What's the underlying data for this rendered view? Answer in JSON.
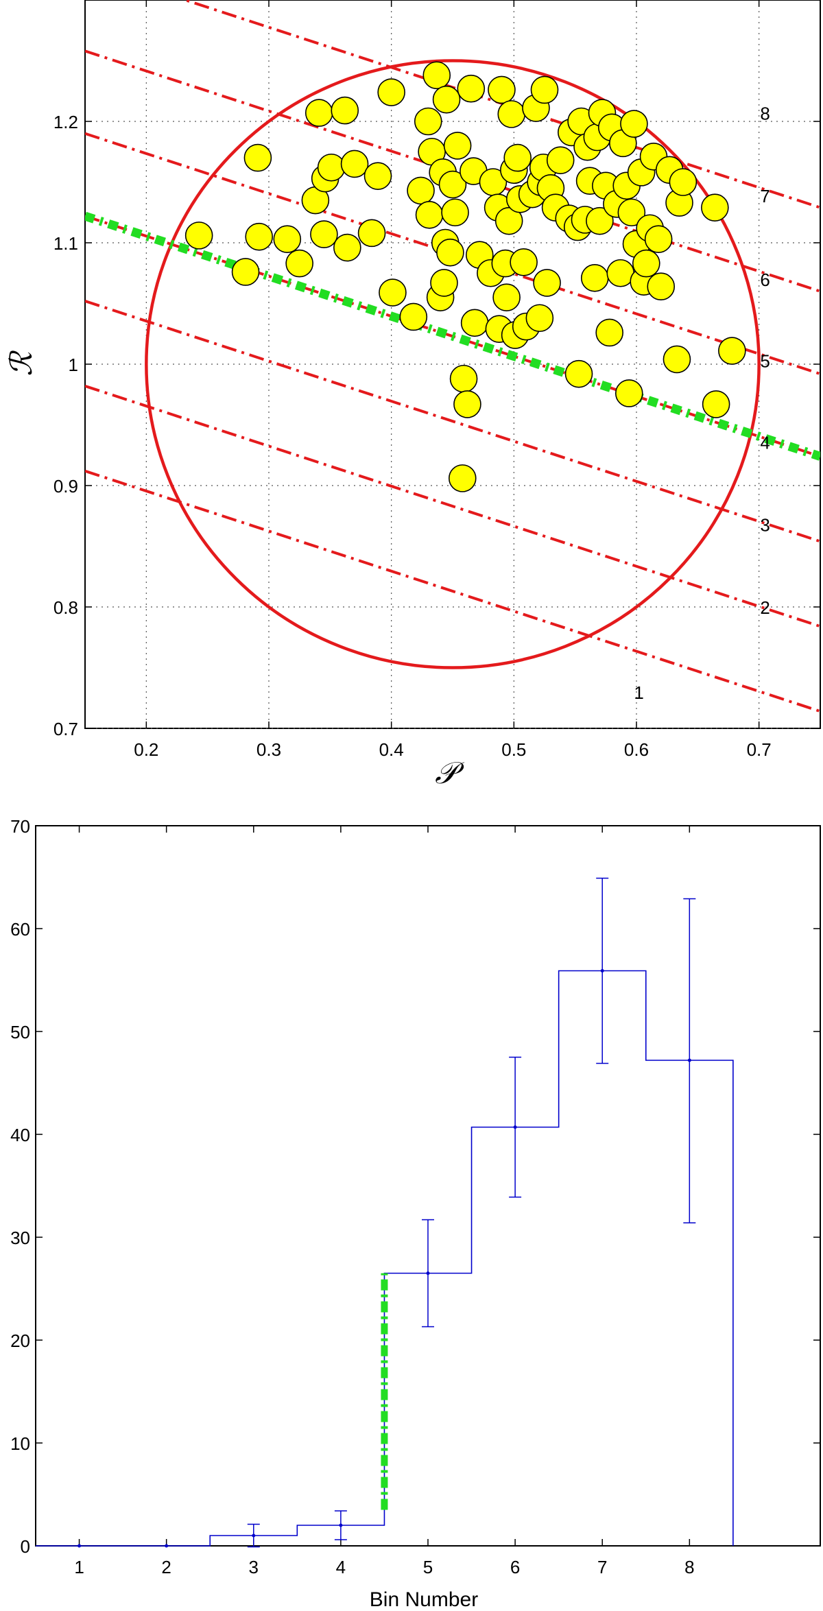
{
  "chart_data": [
    {
      "type": "scatter",
      "xlabel": "𝒫",
      "ylabel": "ℛ",
      "xlim": [
        0.15,
        0.75
      ],
      "ylim": [
        0.7,
        1.3
      ],
      "xticks": [
        "0.2",
        "0.3",
        "0.4",
        "0.5",
        "0.6",
        "0.7"
      ],
      "yticks": [
        "0.7",
        "0.8",
        "0.9",
        "1",
        "1.1",
        "1.2"
      ],
      "grid": true,
      "circle": {
        "center": [
          0.45,
          1.0
        ],
        "radius_x": 0.25,
        "radius_y": 0.25,
        "color": "#e41a1c"
      },
      "bin_lines": {
        "slope": -0.33,
        "intercepts_at_x015": [
          0.912,
          0.982,
          1.052,
          1.122,
          1.19,
          1.258,
          1.327
        ],
        "color": "#e41a1c"
      },
      "threshold_line": {
        "intercept_at_x015": 1.122,
        "slope": -0.33,
        "color": "#22dd22"
      },
      "bin_labels": [
        "1",
        "2",
        "3",
        "4",
        "5",
        "6",
        "7",
        "8"
      ],
      "points": [
        [
          0.243,
          1.106
        ],
        [
          0.281,
          1.076
        ],
        [
          0.291,
          1.17
        ],
        [
          0.292,
          1.105
        ],
        [
          0.315,
          1.103
        ],
        [
          0.325,
          1.083
        ],
        [
          0.338,
          1.135
        ],
        [
          0.341,
          1.207
        ],
        [
          0.345,
          1.107
        ],
        [
          0.346,
          1.153
        ],
        [
          0.351,
          1.162
        ],
        [
          0.362,
          1.209
        ],
        [
          0.364,
          1.096
        ],
        [
          0.37,
          1.165
        ],
        [
          0.384,
          1.108
        ],
        [
          0.389,
          1.155
        ],
        [
          0.4,
          1.224
        ],
        [
          0.401,
          1.059
        ],
        [
          0.418,
          1.039
        ],
        [
          0.424,
          1.143
        ],
        [
          0.43,
          1.2
        ],
        [
          0.431,
          1.123
        ],
        [
          0.433,
          1.175
        ],
        [
          0.437,
          1.238
        ],
        [
          0.44,
          1.055
        ],
        [
          0.442,
          1.158
        ],
        [
          0.443,
          1.067
        ],
        [
          0.444,
          1.1
        ],
        [
          0.445,
          1.218
        ],
        [
          0.448,
          1.092
        ],
        [
          0.45,
          1.148
        ],
        [
          0.452,
          1.125
        ],
        [
          0.454,
          1.18
        ],
        [
          0.458,
          0.906
        ],
        [
          0.459,
          0.988
        ],
        [
          0.462,
          0.967
        ],
        [
          0.465,
          1.227
        ],
        [
          0.467,
          1.159
        ],
        [
          0.468,
          1.034
        ],
        [
          0.472,
          1.09
        ],
        [
          0.481,
          1.075
        ],
        [
          0.483,
          1.15
        ],
        [
          0.487,
          1.129
        ],
        [
          0.488,
          1.029
        ],
        [
          0.49,
          1.226
        ],
        [
          0.493,
          1.083
        ],
        [
          0.494,
          1.055
        ],
        [
          0.496,
          1.118
        ],
        [
          0.498,
          1.206
        ],
        [
          0.5,
          1.16
        ],
        [
          0.501,
          1.024
        ],
        [
          0.503,
          1.17
        ],
        [
          0.505,
          1.136
        ],
        [
          0.508,
          1.084
        ],
        [
          0.51,
          1.031
        ],
        [
          0.515,
          1.14
        ],
        [
          0.518,
          1.211
        ],
        [
          0.521,
          1.038
        ],
        [
          0.522,
          1.15
        ],
        [
          0.524,
          1.162
        ],
        [
          0.525,
          1.226
        ],
        [
          0.527,
          1.067
        ],
        [
          0.53,
          1.145
        ],
        [
          0.534,
          1.129
        ],
        [
          0.538,
          1.168
        ],
        [
          0.545,
          1.12
        ],
        [
          0.547,
          1.191
        ],
        [
          0.552,
          1.113
        ],
        [
          0.553,
          0.992
        ],
        [
          0.555,
          1.2
        ],
        [
          0.558,
          1.119
        ],
        [
          0.56,
          1.179
        ],
        [
          0.562,
          1.151
        ],
        [
          0.566,
          1.071
        ],
        [
          0.568,
          1.187
        ],
        [
          0.57,
          1.118
        ],
        [
          0.572,
          1.207
        ],
        [
          0.575,
          1.147
        ],
        [
          0.578,
          1.026
        ],
        [
          0.58,
          1.195
        ],
        [
          0.584,
          1.132
        ],
        [
          0.587,
          1.075
        ],
        [
          0.589,
          1.182
        ],
        [
          0.592,
          1.147
        ],
        [
          0.594,
          0.976
        ],
        [
          0.596,
          1.125
        ],
        [
          0.598,
          1.198
        ],
        [
          0.6,
          1.099
        ],
        [
          0.604,
          1.158
        ],
        [
          0.606,
          1.068
        ],
        [
          0.608,
          1.083
        ],
        [
          0.611,
          1.112
        ],
        [
          0.614,
          1.171
        ],
        [
          0.618,
          1.103
        ],
        [
          0.62,
          1.064
        ],
        [
          0.627,
          1.16
        ],
        [
          0.633,
          1.004
        ],
        [
          0.635,
          1.133
        ],
        [
          0.638,
          1.15
        ],
        [
          0.664,
          1.129
        ],
        [
          0.665,
          0.967
        ],
        [
          0.678,
          1.011
        ]
      ],
      "marker_color": "#ffff00"
    },
    {
      "type": "bar",
      "xlabel": "Bin Number",
      "ylabel": "",
      "categories": [
        "1",
        "2",
        "3",
        "4",
        "5",
        "6",
        "7",
        "8"
      ],
      "values": [
        0,
        0,
        1,
        2,
        26.5,
        40.7,
        55.9,
        47.2
      ],
      "errors_low": [
        0,
        0,
        1.1,
        1.4,
        5.2,
        6.8,
        9.0,
        15.8
      ],
      "errors_high": [
        0,
        0,
        1.1,
        1.4,
        5.2,
        6.8,
        9.0,
        15.7
      ],
      "xlim": [
        0.5,
        9.5
      ],
      "ylim": [
        0,
        70
      ],
      "yticks": [
        "0",
        "10",
        "20",
        "30",
        "40",
        "50",
        "60",
        "70"
      ],
      "style": "stairs",
      "color": "#0000cc",
      "threshold": {
        "at_x": 4.5,
        "y_from": 3.5,
        "y_to": 26.5,
        "color": "#22dd22"
      }
    }
  ]
}
